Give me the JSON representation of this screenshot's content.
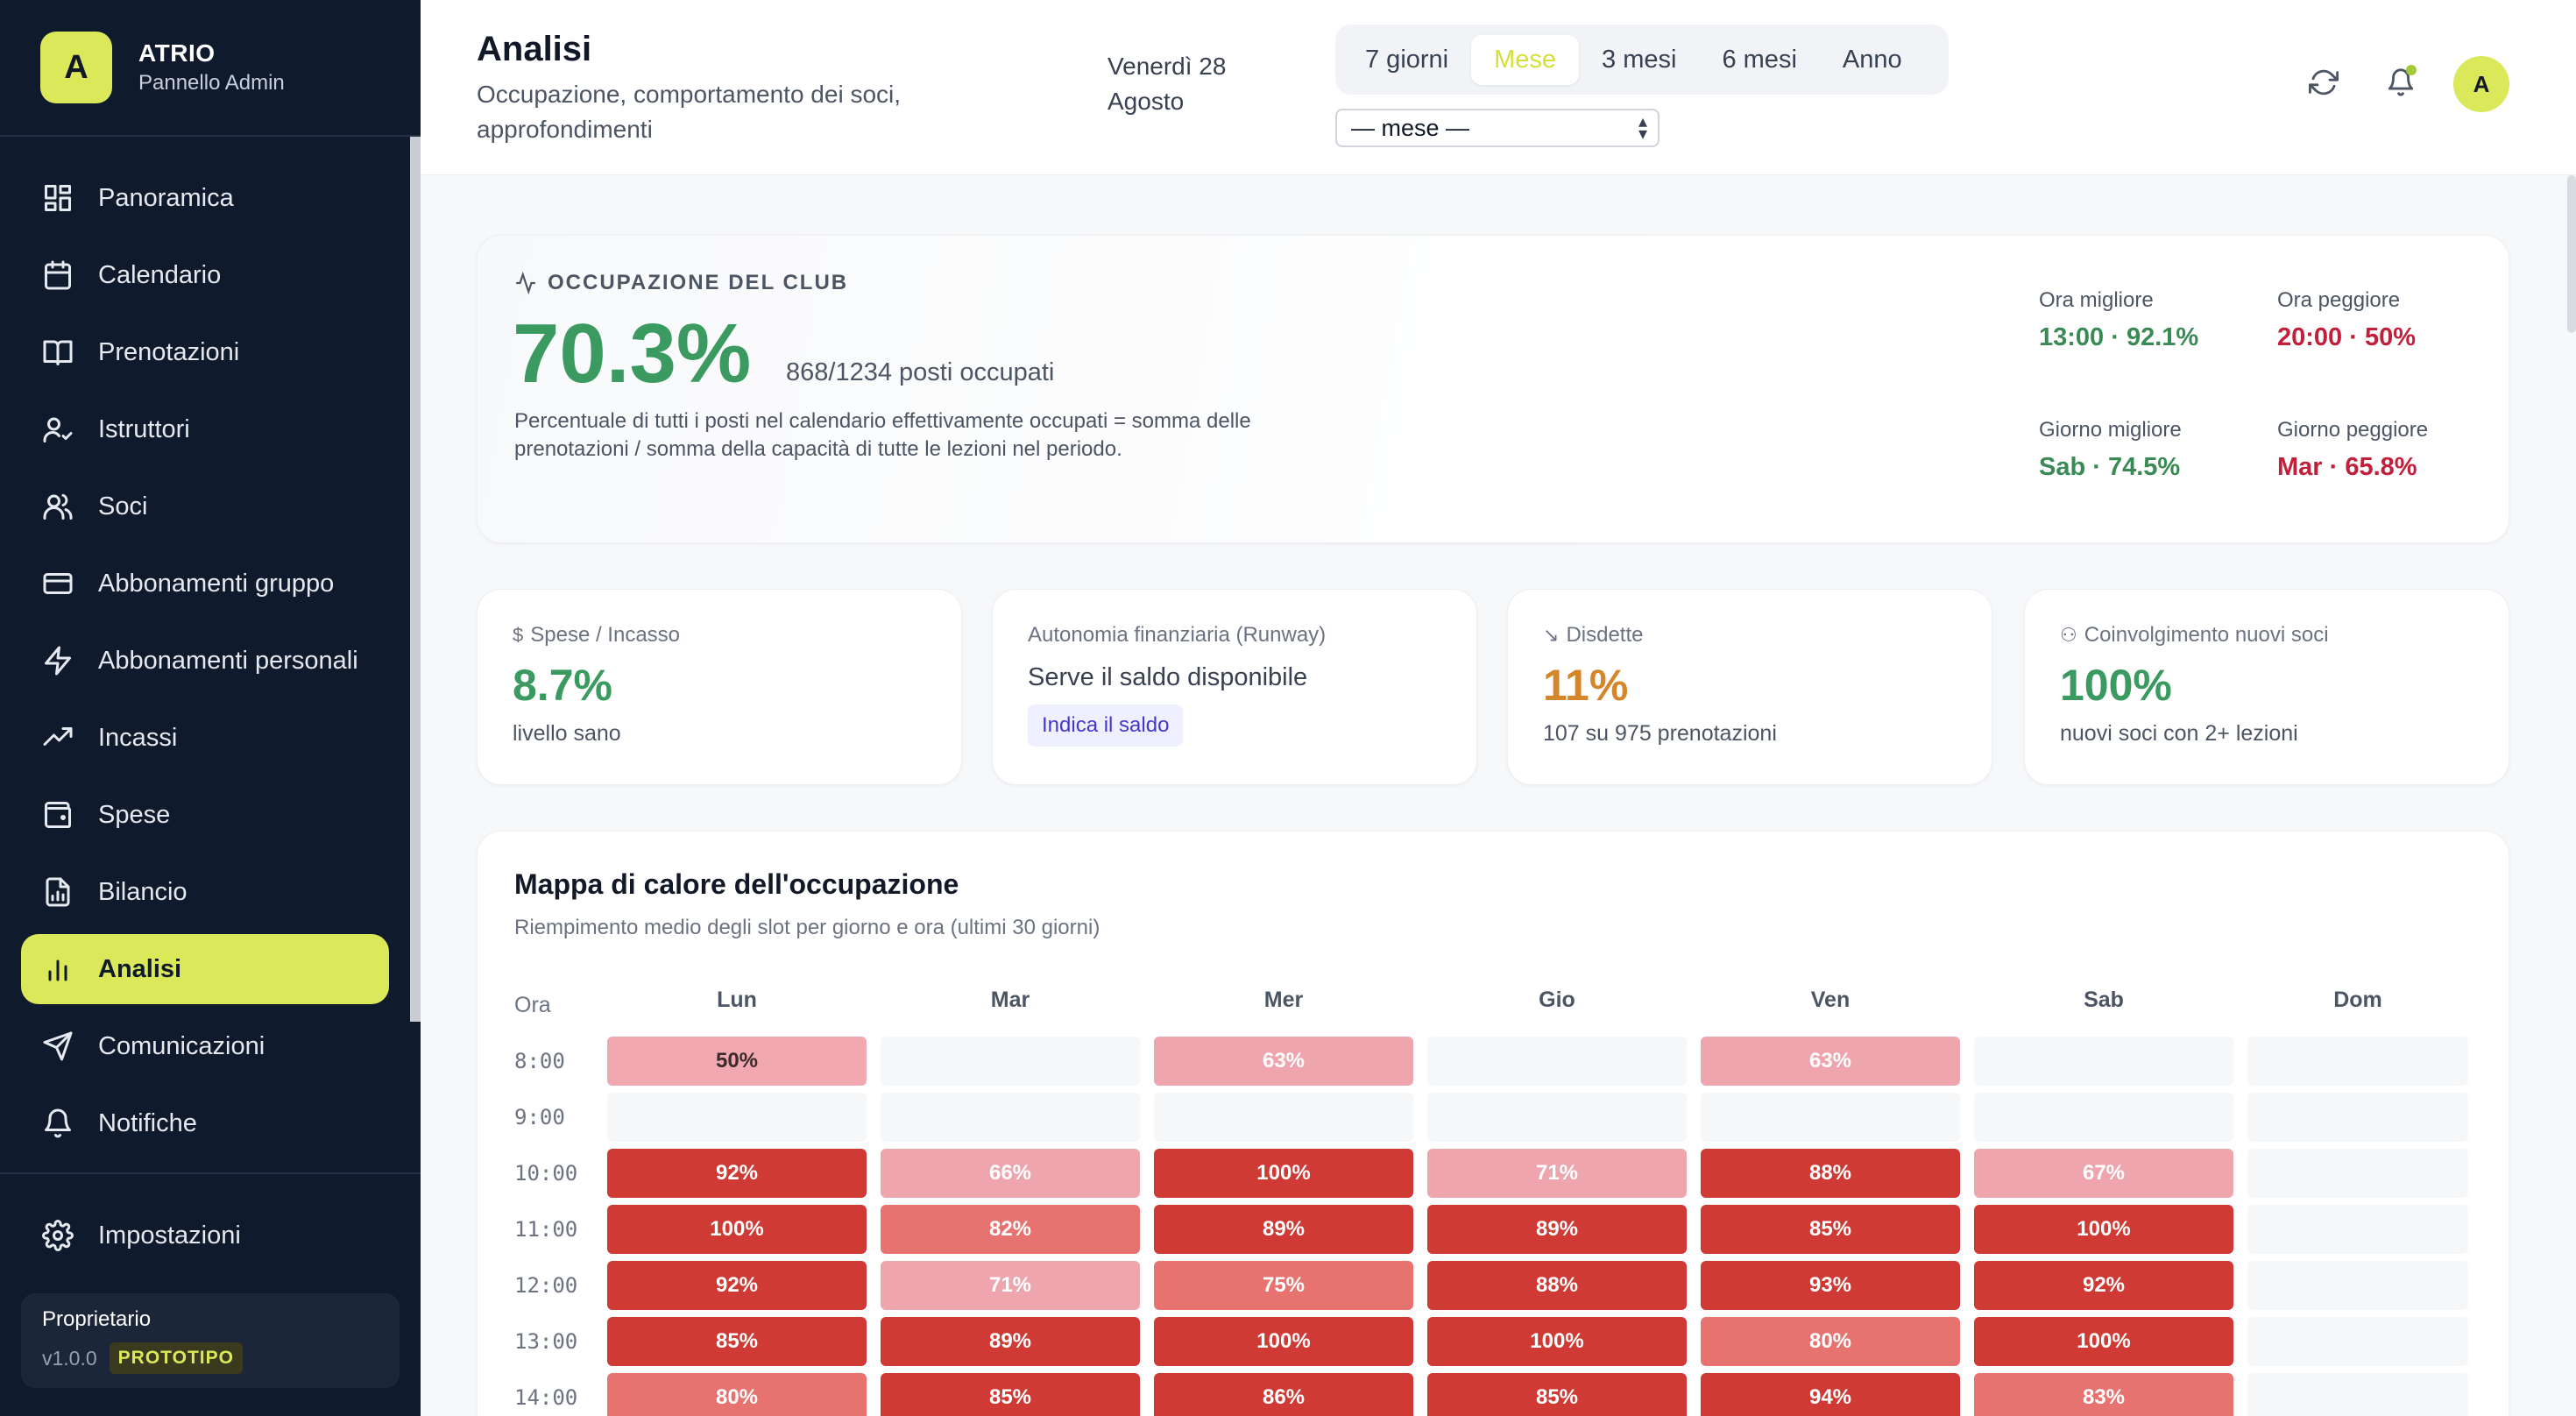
{
  "brand": {
    "logo_letter": "A",
    "title": "ATRIO",
    "subtitle": "Pannello Admin",
    "accent_color": "#dbe85a"
  },
  "sidebar": {
    "items": [
      {
        "label": "Panoramica",
        "icon": "grid-icon",
        "active": false
      },
      {
        "label": "Calendario",
        "icon": "calendar-icon",
        "active": false
      },
      {
        "label": "Prenotazioni",
        "icon": "book-icon",
        "active": false
      },
      {
        "label": "Istruttori",
        "icon": "user-check-icon",
        "active": false
      },
      {
        "label": "Soci",
        "icon": "users-icon",
        "active": false
      },
      {
        "label": "Abbonamenti gruppo",
        "icon": "credit-card-icon",
        "active": false
      },
      {
        "label": "Abbonamenti personali",
        "icon": "zap-icon",
        "active": false
      },
      {
        "label": "Incassi",
        "icon": "trending-up-icon",
        "active": false
      },
      {
        "label": "Spese",
        "icon": "wallet-icon",
        "active": false
      },
      {
        "label": "Bilancio",
        "icon": "file-chart-icon",
        "active": false
      },
      {
        "label": "Analisi",
        "icon": "bar-chart-icon",
        "active": true
      },
      {
        "label": "Comunicazioni",
        "icon": "send-icon",
        "active": false
      },
      {
        "label": "Notifiche",
        "icon": "bell-icon",
        "active": false
      }
    ],
    "settings_label": "Impostazioni",
    "owner": {
      "role": "Proprietario",
      "version": "v1.0.0",
      "badge": "PROTOTIPO"
    }
  },
  "header": {
    "title": "Analisi",
    "subtitle": "Occupazione, comportamento dei soci, approfondimenti",
    "date": "Venerdì 28 Agosto",
    "ranges": [
      "7 giorni",
      "Mese",
      "3 mesi",
      "6 mesi",
      "Anno"
    ],
    "active_range": "Mese",
    "month_select": "— mese —",
    "avatar_letter": "A"
  },
  "occupancy": {
    "label": "OCCUPAZIONE DEL CLUB",
    "value": "70.3%",
    "seats": "868/1234 posti occupati",
    "description": "Percentuale di tutti i posti nel calendario effettivamente occupati = somma delle prenotazioni / somma della capacità di tutte le lezioni nel periodo.",
    "best_hour_label": "Ora migliore",
    "best_hour": "13:00 · 92.1%",
    "worst_hour_label": "Ora peggiore",
    "worst_hour": "20:00 · 50%",
    "best_day_label": "Giorno migliore",
    "best_day": "Sab · 74.5%",
    "worst_day_label": "Giorno peggiore",
    "worst_day": "Mar · 65.8%"
  },
  "kpis": {
    "expenses": {
      "label": "Spese / Incasso",
      "value": "8.7%",
      "sub": "livello sano",
      "color": "#3a9a60"
    },
    "runway": {
      "label": "Autonomia finanziaria (Runway)",
      "text": "Serve il saldo disponibile",
      "button": "Indica il saldo"
    },
    "cancellations": {
      "label": "Disdette",
      "value": "11%",
      "sub": "107 su 975 prenotazioni",
      "color": "#d4862a"
    },
    "engagement": {
      "label": "Coinvolgimento nuovi soci",
      "value": "100%",
      "sub": "nuovi soci con 2+ lezioni",
      "color": "#3a9a60"
    }
  },
  "heatmap": {
    "title": "Mappa di calore dell'occupazione",
    "subtitle": "Riempimento medio degli slot per giorno e ora (ultimi 30 giorni)",
    "hour_header": "Ora",
    "days": [
      "Lun",
      "Mar",
      "Mer",
      "Gio",
      "Ven",
      "Sab",
      "Dom"
    ],
    "rows": [
      {
        "hour": "8:00",
        "cells": [
          50,
          null,
          63,
          null,
          63,
          null,
          null
        ]
      },
      {
        "hour": "9:00",
        "cells": [
          null,
          null,
          null,
          null,
          null,
          null,
          null
        ]
      },
      {
        "hour": "10:00",
        "cells": [
          92,
          66,
          100,
          71,
          88,
          67,
          null
        ]
      },
      {
        "hour": "11:00",
        "cells": [
          100,
          82,
          89,
          89,
          85,
          100,
          null
        ]
      },
      {
        "hour": "12:00",
        "cells": [
          92,
          71,
          75,
          88,
          93,
          92,
          null
        ]
      },
      {
        "hour": "13:00",
        "cells": [
          85,
          89,
          100,
          100,
          80,
          100,
          null
        ]
      },
      {
        "hour": "14:00",
        "cells": [
          80,
          85,
          86,
          85,
          94,
          83,
          null
        ]
      }
    ]
  }
}
